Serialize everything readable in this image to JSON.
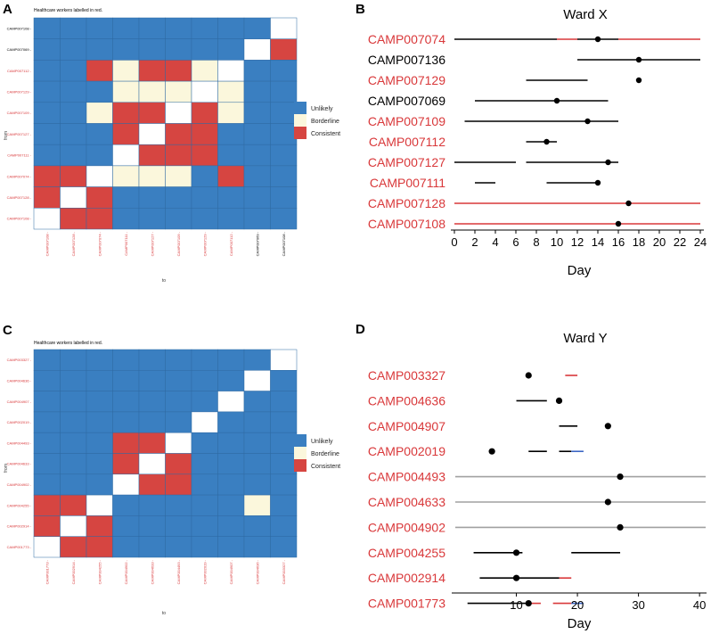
{
  "colors": {
    "unlikely": "#3a7fc1",
    "borderline": "#fbf7dc",
    "consistent": "#d64541",
    "diagonal": "#ffffff",
    "hcw_label": "#d9383a",
    "patient_label": "#000000",
    "grey_line": "#a0a0a0",
    "blue_line": "#3b66c4"
  },
  "chart_data": [
    {
      "panel": "A",
      "type": "heatmap",
      "note": "Healthcare workers labelled in red.",
      "xlabel": "to",
      "ylabel": "from",
      "rows": [
        "CAMP007108",
        "CAMP007069",
        "CAMP007112",
        "CAMP007129",
        "CAMP007109",
        "CAMP007127",
        "CAMP007111",
        "CAMP007074",
        "CAMP007128",
        "CAMP007108"
      ],
      "row_hcw": [
        false,
        false,
        true,
        true,
        true,
        true,
        true,
        true,
        true,
        true
      ],
      "cols": [
        "CAMP007108",
        "CAMP007128",
        "CAMP007074",
        "CAMP007111",
        "CAMP007127",
        "CAMP007109",
        "CAMP007129",
        "CAMP007112",
        "CAMP007069",
        "CAMP007108"
      ],
      "col_hcw": [
        true,
        true,
        true,
        true,
        true,
        true,
        true,
        true,
        false,
        false
      ],
      "values": [
        [
          0,
          0,
          0,
          0,
          0,
          0,
          0,
          0,
          0,
          3
        ],
        [
          0,
          0,
          0,
          0,
          0,
          0,
          0,
          0,
          3,
          2
        ],
        [
          0,
          0,
          2,
          1,
          2,
          2,
          1,
          3,
          0,
          0
        ],
        [
          0,
          0,
          0,
          1,
          1,
          1,
          3,
          1,
          0,
          0
        ],
        [
          0,
          0,
          1,
          2,
          2,
          3,
          2,
          1,
          0,
          0
        ],
        [
          0,
          0,
          0,
          2,
          3,
          2,
          2,
          0,
          0,
          0
        ],
        [
          0,
          0,
          0,
          3,
          2,
          2,
          2,
          0,
          0,
          0
        ],
        [
          2,
          2,
          3,
          1,
          1,
          1,
          0,
          2,
          0,
          0
        ],
        [
          2,
          3,
          2,
          0,
          0,
          0,
          0,
          0,
          0,
          0
        ],
        [
          3,
          2,
          2,
          0,
          0,
          0,
          0,
          0,
          0,
          0
        ]
      ],
      "legend": [
        "Unlikely",
        "Borderline",
        "Consistent"
      ]
    },
    {
      "panel": "B",
      "type": "line",
      "title": "Ward X",
      "xlabel": "Day",
      "xlim": [
        0,
        24
      ],
      "xticks": [
        0,
        2,
        4,
        6,
        8,
        10,
        12,
        14,
        16,
        18,
        20,
        22,
        24
      ],
      "rows": [
        {
          "label": "CAMP007074",
          "hcw": true,
          "point": 14,
          "segments": [
            {
              "from": 0,
              "to": 10,
              "color": "black"
            },
            {
              "from": 10,
              "to": 12,
              "color": "red"
            },
            {
              "from": 12,
              "to": 16,
              "color": "black"
            },
            {
              "from": 16,
              "to": 24,
              "color": "red"
            }
          ]
        },
        {
          "label": "CAMP007136",
          "hcw": false,
          "point": 18,
          "segments": [
            {
              "from": 12,
              "to": 24,
              "color": "black"
            }
          ]
        },
        {
          "label": "CAMP007129",
          "hcw": true,
          "point": 18,
          "segments": [
            {
              "from": 7,
              "to": 13,
              "color": "black"
            }
          ]
        },
        {
          "label": "CAMP007069",
          "hcw": false,
          "point": 10,
          "segments": [
            {
              "from": 2,
              "to": 15,
              "color": "black"
            }
          ]
        },
        {
          "label": "CAMP007109",
          "hcw": true,
          "point": 13,
          "segments": [
            {
              "from": 1,
              "to": 16,
              "color": "black"
            }
          ]
        },
        {
          "label": "CAMP007112",
          "hcw": true,
          "point": 9,
          "segments": [
            {
              "from": 7,
              "to": 10,
              "color": "black"
            }
          ]
        },
        {
          "label": "CAMP007127",
          "hcw": true,
          "point": 15,
          "segments": [
            {
              "from": 0,
              "to": 6,
              "color": "black"
            },
            {
              "from": 7,
              "to": 16,
              "color": "black"
            }
          ]
        },
        {
          "label": "CAMP007111",
          "hcw": true,
          "point": 14,
          "segments": [
            {
              "from": 2,
              "to": 4,
              "color": "black"
            },
            {
              "from": 9,
              "to": 14,
              "color": "black"
            }
          ]
        },
        {
          "label": "CAMP007128",
          "hcw": true,
          "point": 17,
          "segments": [
            {
              "from": 0,
              "to": 24,
              "color": "red"
            }
          ]
        },
        {
          "label": "CAMP007108",
          "hcw": true,
          "point": 16,
          "segments": [
            {
              "from": 0,
              "to": 24,
              "color": "red"
            }
          ]
        }
      ]
    },
    {
      "panel": "C",
      "type": "heatmap",
      "note": "Healthcare workers labelled in red.",
      "xlabel": "to",
      "ylabel": "from",
      "rows": [
        "CAMP003327",
        "CAMP004636",
        "CAMP004907",
        "CAMP002019",
        "CAMP004493",
        "CAMP004633",
        "CAMP004902",
        "CAMP004255",
        "CAMP002914",
        "CAMP001773"
      ],
      "row_hcw": [
        true,
        true,
        true,
        true,
        true,
        true,
        true,
        true,
        true,
        true
      ],
      "cols": [
        "CAMP001773",
        "CAMP002914",
        "CAMP004255",
        "CAMP004902",
        "CAMP004633",
        "CAMP004493",
        "CAMP002019",
        "CAMP004907",
        "CAMP004636",
        "CAMP003327"
      ],
      "col_hcw": [
        true,
        true,
        true,
        true,
        true,
        true,
        true,
        true,
        true,
        true
      ],
      "values": [
        [
          0,
          0,
          0,
          0,
          0,
          0,
          0,
          0,
          0,
          3
        ],
        [
          0,
          0,
          0,
          0,
          0,
          0,
          0,
          0,
          3,
          0
        ],
        [
          0,
          0,
          0,
          0,
          0,
          0,
          0,
          3,
          0,
          0
        ],
        [
          0,
          0,
          0,
          0,
          0,
          0,
          3,
          0,
          0,
          0
        ],
        [
          0,
          0,
          0,
          2,
          2,
          3,
          0,
          0,
          0,
          0
        ],
        [
          0,
          0,
          0,
          2,
          3,
          2,
          0,
          0,
          0,
          0
        ],
        [
          0,
          0,
          0,
          3,
          2,
          2,
          0,
          0,
          0,
          0
        ],
        [
          2,
          2,
          3,
          0,
          0,
          0,
          0,
          0,
          1,
          0
        ],
        [
          2,
          3,
          2,
          0,
          0,
          0,
          0,
          0,
          0,
          0
        ],
        [
          3,
          2,
          2,
          0,
          0,
          0,
          0,
          0,
          0,
          0
        ]
      ],
      "legend": [
        "Unlikely",
        "Borderline",
        "Consistent"
      ]
    },
    {
      "panel": "D",
      "type": "line",
      "title": "Ward Y",
      "xlabel": "Day",
      "xlim": [
        0,
        41
      ],
      "xticks": [
        10,
        20,
        30,
        40
      ],
      "rows": [
        {
          "label": "CAMP003327",
          "hcw": true,
          "point": 12,
          "segments": [
            {
              "from": 18,
              "to": 20,
              "color": "red"
            }
          ]
        },
        {
          "label": "CAMP004636",
          "hcw": true,
          "point": 17,
          "segments": [
            {
              "from": 10,
              "to": 15,
              "color": "black"
            }
          ]
        },
        {
          "label": "CAMP004907",
          "hcw": true,
          "point": 25,
          "segments": [
            {
              "from": 17,
              "to": 20,
              "color": "black"
            }
          ]
        },
        {
          "label": "CAMP002019",
          "hcw": true,
          "point": 6,
          "segments": [
            {
              "from": 12,
              "to": 15,
              "color": "black"
            },
            {
              "from": 17,
              "to": 19,
              "color": "black"
            },
            {
              "from": 19,
              "to": 21,
              "color": "blue"
            }
          ]
        },
        {
          "label": "CAMP004493",
          "hcw": true,
          "point": 27,
          "segments": [
            {
              "from": 0,
              "to": 41,
              "color": "grey"
            }
          ]
        },
        {
          "label": "CAMP004633",
          "hcw": true,
          "point": 25,
          "segments": [
            {
              "from": 0,
              "to": 41,
              "color": "grey"
            }
          ]
        },
        {
          "label": "CAMP004902",
          "hcw": true,
          "point": 27,
          "segments": [
            {
              "from": 0,
              "to": 41,
              "color": "grey"
            }
          ]
        },
        {
          "label": "CAMP004255",
          "hcw": true,
          "point": 10,
          "segments": [
            {
              "from": 3,
              "to": 11,
              "color": "black"
            },
            {
              "from": 19,
              "to": 27,
              "color": "black"
            }
          ]
        },
        {
          "label": "CAMP002914",
          "hcw": true,
          "point": 10,
          "segments": [
            {
              "from": 4,
              "to": 17,
              "color": "black"
            },
            {
              "from": 17,
              "to": 19,
              "color": "red"
            }
          ]
        },
        {
          "label": "CAMP001773",
          "hcw": true,
          "point": 12,
          "segments": [
            {
              "from": 2,
              "to": 12,
              "color": "black"
            },
            {
              "from": 12,
              "to": 14,
              "color": "red"
            },
            {
              "from": 16,
              "to": 19,
              "color": "red"
            },
            {
              "from": 19,
              "to": 21,
              "color": "blue"
            }
          ]
        }
      ]
    }
  ]
}
